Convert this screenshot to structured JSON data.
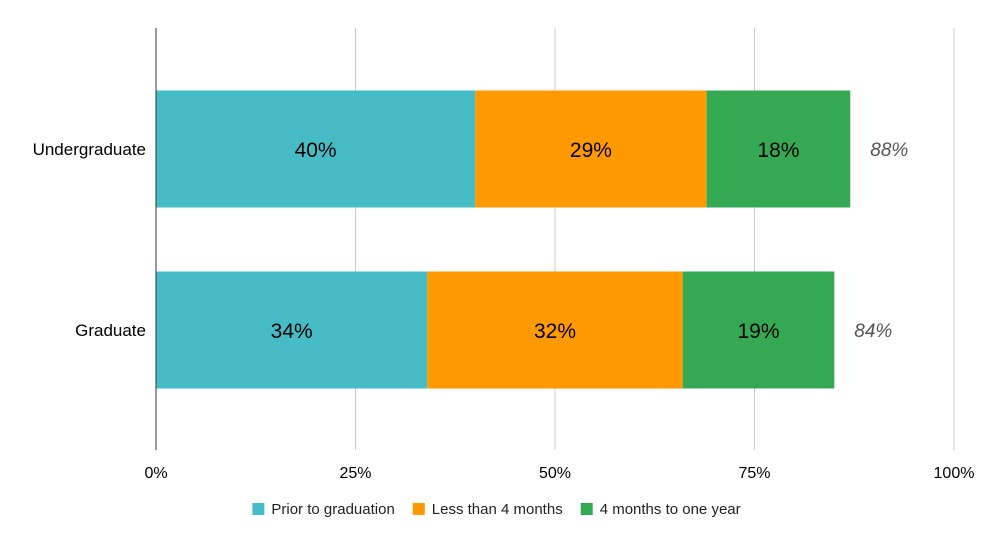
{
  "chart_data": {
    "type": "bar",
    "orientation": "horizontal",
    "stacked": true,
    "categories": [
      "Undergraduate",
      "Graduate"
    ],
    "series": [
      {
        "name": "Prior to graduation",
        "values": [
          40,
          34
        ],
        "labels": [
          "40%",
          "34%"
        ],
        "color": "#46BDC6"
      },
      {
        "name": "Less than 4 months",
        "values": [
          29,
          32
        ],
        "labels": [
          "29%",
          "32%"
        ],
        "color": "#FF9900"
      },
      {
        "name": "4 months to one year",
        "values": [
          18,
          19
        ],
        "labels": [
          "18%",
          "19%"
        ],
        "color": "#34A853"
      }
    ],
    "totals": [
      88,
      84
    ],
    "total_labels": [
      "88%",
      "84%"
    ],
    "xlim": [
      0,
      100
    ],
    "x_ticks": [
      0,
      25,
      50,
      75,
      100
    ],
    "x_tick_labels": [
      "0%",
      "25%",
      "50%",
      "75%",
      "100%"
    ],
    "grid": true,
    "legend_position": "bottom",
    "title": "",
    "xlabel": "",
    "ylabel": ""
  }
}
